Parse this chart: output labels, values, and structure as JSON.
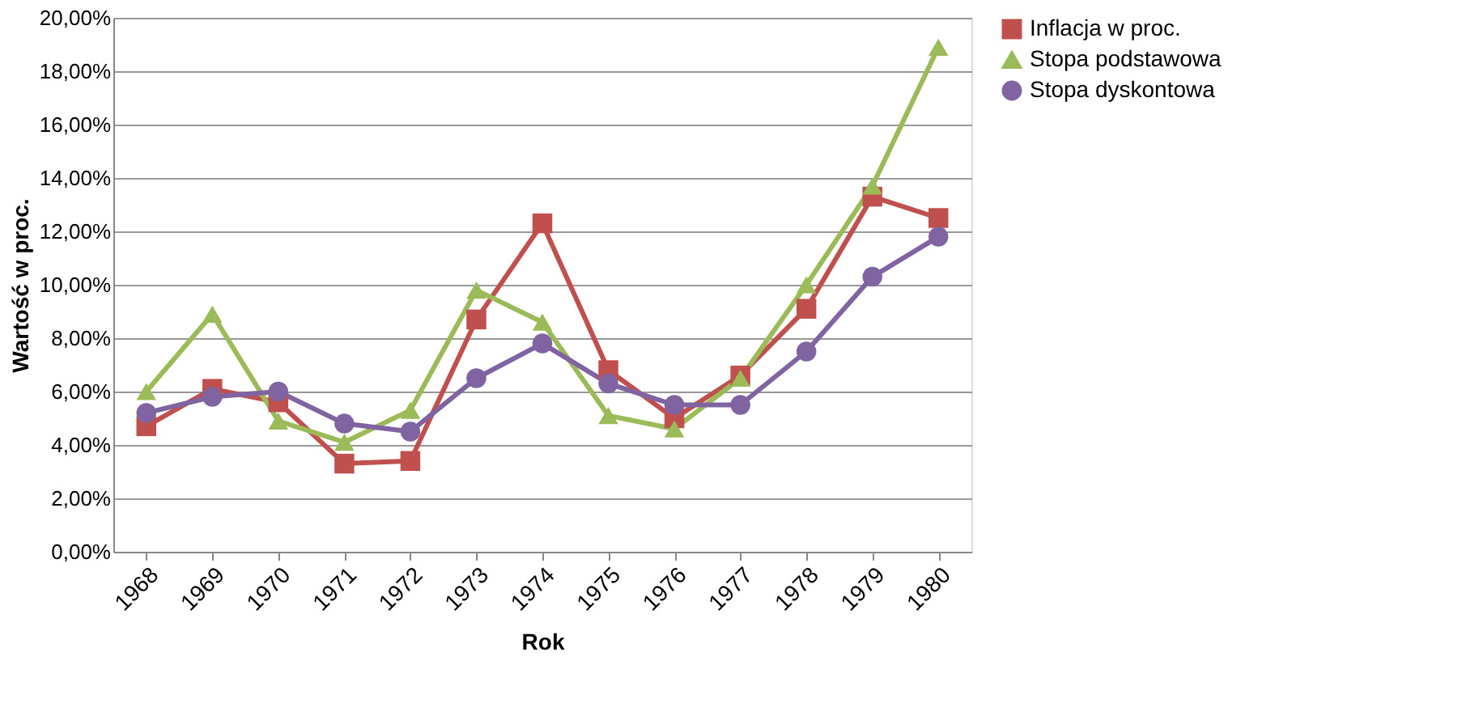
{
  "chart_data": {
    "type": "line",
    "xlabel": "Rok",
    "ylabel": "Wartość w proc.",
    "categories": [
      "1968",
      "1969",
      "1970",
      "1971",
      "1972",
      "1973",
      "1974",
      "1975",
      "1976",
      "1977",
      "1978",
      "1979",
      "1980"
    ],
    "series": [
      {
        "name": "Inflacja w proc.",
        "color": "#c0504d",
        "marker": "square",
        "values": [
          4.7,
          6.1,
          5.6,
          3.3,
          3.4,
          8.7,
          12.3,
          6.8,
          5.0,
          6.6,
          9.1,
          13.3,
          12.5
        ]
      },
      {
        "name": "Stopa podstawowa",
        "color": "#9bbb59",
        "marker": "triangle",
        "values": [
          6.0,
          8.9,
          4.9,
          4.1,
          5.3,
          9.8,
          8.6,
          5.1,
          4.6,
          6.5,
          10.0,
          13.7,
          18.9
        ]
      },
      {
        "name": "Stopa dyskontowa",
        "color": "#8064a2",
        "marker": "circle",
        "values": [
          5.2,
          5.8,
          6.0,
          4.8,
          4.5,
          6.5,
          7.8,
          6.3,
          5.5,
          5.5,
          7.5,
          10.3,
          11.8
        ]
      }
    ],
    "ylim": [
      0,
      20
    ],
    "yticks": [
      {
        "value": 0,
        "label": "0,00%"
      },
      {
        "value": 2,
        "label": "2,00%"
      },
      {
        "value": 4,
        "label": "4,00%"
      },
      {
        "value": 6,
        "label": "6,00%"
      },
      {
        "value": 8,
        "label": "8,00%"
      },
      {
        "value": 10,
        "label": "10,00%"
      },
      {
        "value": 12,
        "label": "12,00%"
      },
      {
        "value": 14,
        "label": "14,00%"
      },
      {
        "value": 16,
        "label": "16,00%"
      },
      {
        "value": 18,
        "label": "18,00%"
      },
      {
        "value": 20,
        "label": "20,00%"
      }
    ],
    "grid": "y",
    "legend": "right",
    "line_style": "solid"
  }
}
